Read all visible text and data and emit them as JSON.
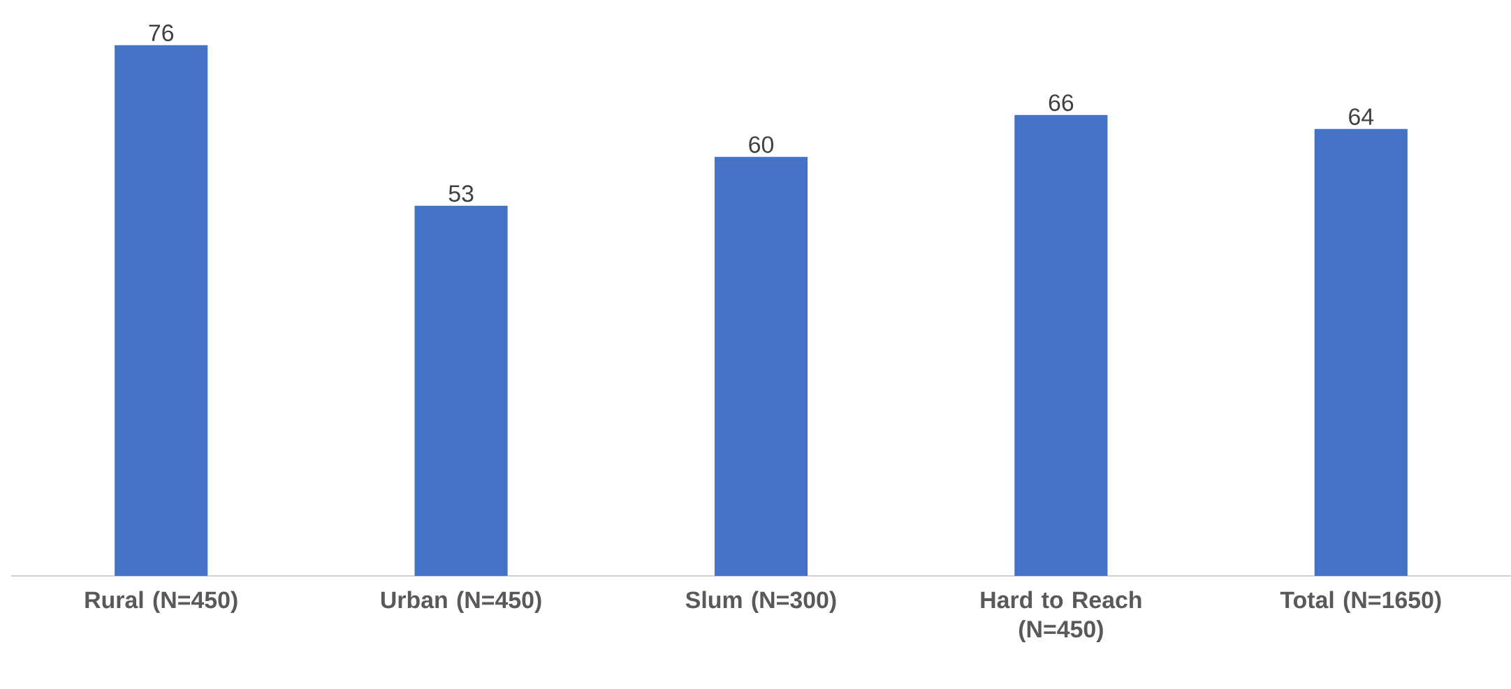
{
  "chart_data": {
    "type": "bar",
    "categories": [
      "Rural (N=450)",
      "Urban (N=450)",
      "Slum (N=300)",
      "Hard to Reach (N=450)",
      "Total (N=1650)"
    ],
    "values": [
      76,
      53,
      60,
      66,
      64
    ],
    "color": "#4472c4",
    "data_labels": true,
    "tick_labels": "x"
  }
}
